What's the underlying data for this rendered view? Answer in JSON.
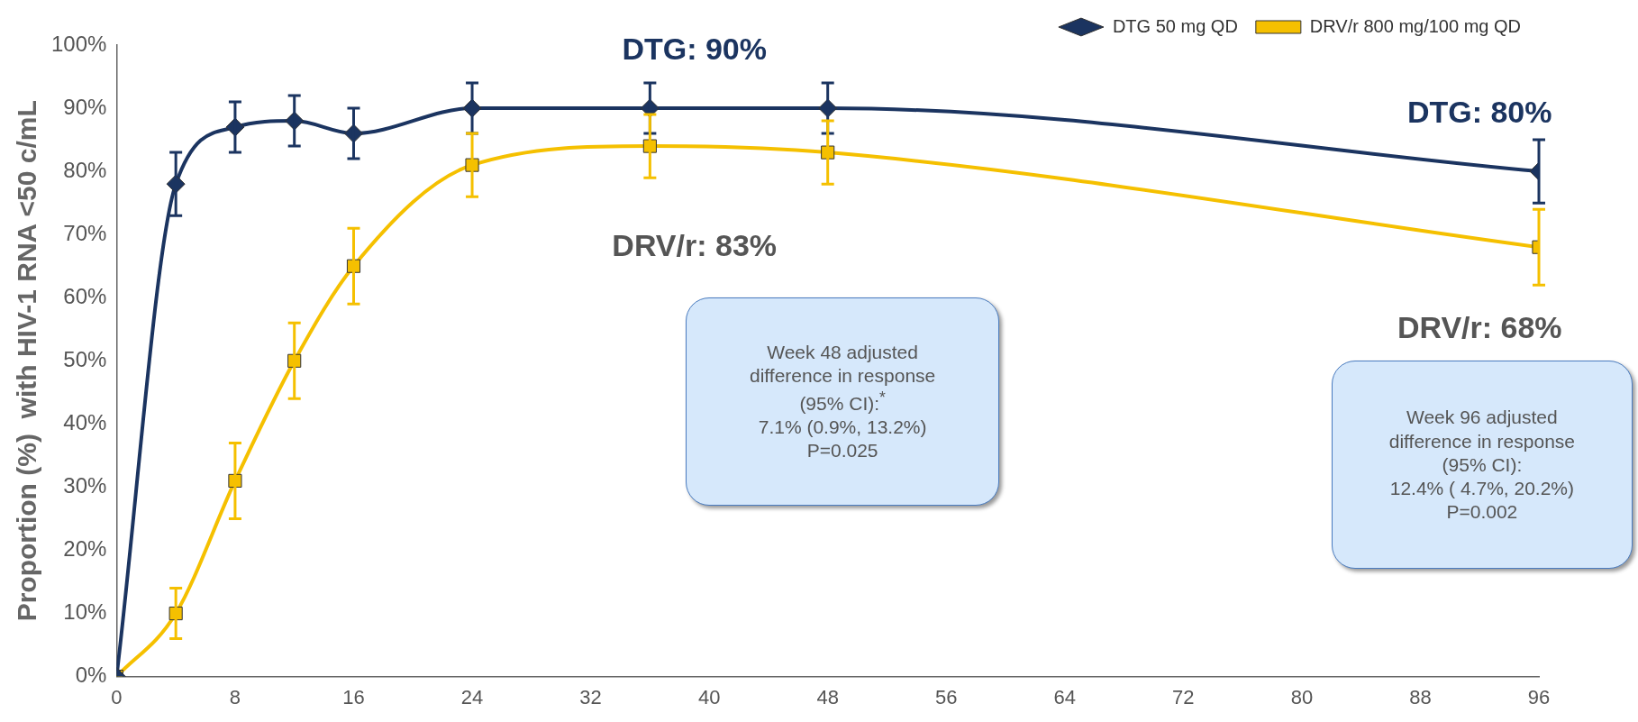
{
  "chart_data": {
    "type": "line",
    "ylabel": "Proportion (%)  with HIV-1 RNA <50 c/mL",
    "xlim": [
      0,
      96
    ],
    "xticks": [
      0,
      8,
      16,
      24,
      32,
      40,
      48,
      56,
      64,
      72,
      80,
      88,
      96
    ],
    "ylim": [
      0,
      100
    ],
    "yticks": [
      {
        "value": 0,
        "label": "0%"
      },
      {
        "value": 10,
        "label": "10%"
      },
      {
        "value": 20,
        "label": "20%"
      },
      {
        "value": 30,
        "label": "30%"
      },
      {
        "value": 40,
        "label": "40%"
      },
      {
        "value": 50,
        "label": "50%"
      },
      {
        "value": 60,
        "label": "60%"
      },
      {
        "value": 70,
        "label": "70%"
      },
      {
        "value": 80,
        "label": "80%"
      },
      {
        "value": 90,
        "label": "90%"
      },
      {
        "value": 100,
        "label": "100%"
      }
    ],
    "grid": false,
    "legend": "top right",
    "series": [
      {
        "name": "DTG 50 mg QD",
        "color": "#1b3460",
        "marker": "diamond",
        "x": [
          0,
          4,
          8,
          12,
          16,
          24,
          36,
          48,
          96
        ],
        "values": [
          0,
          78,
          87,
          88,
          86,
          90,
          90,
          90,
          80
        ],
        "errors": [
          null,
          5,
          4,
          4,
          4,
          4,
          4,
          4,
          5
        ]
      },
      {
        "name": "DRV/r 800 mg/100 mg QD",
        "color": "#f5c000",
        "marker": "square",
        "x": [
          0,
          4,
          8,
          12,
          16,
          24,
          36,
          48,
          96
        ],
        "values": [
          0,
          10,
          31,
          50,
          65,
          81,
          84,
          83,
          68
        ],
        "errors": [
          null,
          4,
          6,
          6,
          6,
          5,
          5,
          5,
          6
        ]
      }
    ],
    "annotations": [
      "DTG: 90%",
      "DTG: 80%",
      "DRV/r: 83%",
      "DRV/r: 68%",
      "Week 48 adjusted\ndifference in response\n(95% CI):$^{*}$\n7.1% (0.9%, 13.2%)\nP=0.025",
      "Week 96 adjusted\ndifference in response\n(95% CI):\n12.4% ( 4.7%, 20.2%)\nP=0.002"
    ]
  }
}
